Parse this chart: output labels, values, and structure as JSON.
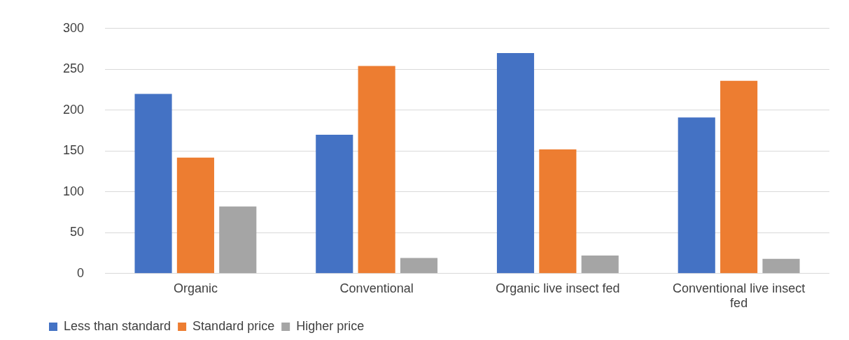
{
  "chart_data": {
    "type": "bar",
    "categories": [
      "Organic",
      "Conventional",
      "Organic live insect fed",
      "Conventional live insect fed"
    ],
    "series": [
      {
        "name": "Less than standard",
        "color": "#4472c4",
        "values": [
          220,
          170,
          270,
          191
        ]
      },
      {
        "name": "Standard price",
        "color": "#ed7d31",
        "values": [
          142,
          254,
          152,
          236
        ]
      },
      {
        "name": "Higher price",
        "color": "#a5a5a5",
        "values": [
          82,
          19,
          22,
          18
        ]
      }
    ],
    "ylim": [
      0,
      300
    ],
    "yticks": [
      0,
      50,
      100,
      150,
      200,
      250,
      300
    ],
    "grid": "y",
    "legend": "bottom"
  }
}
